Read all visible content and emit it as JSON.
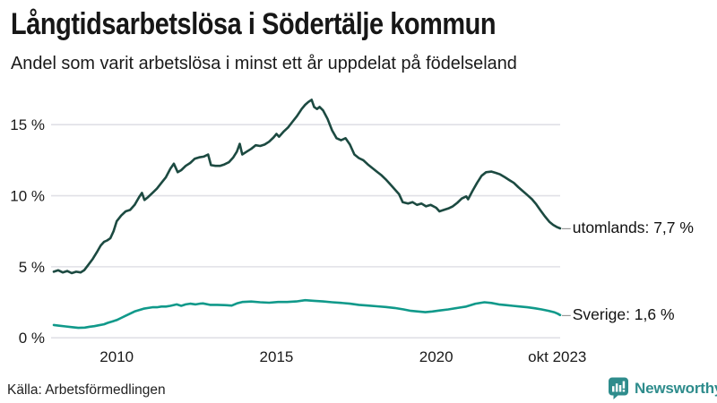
{
  "header": {
    "title": "Långtidsarbetslösa i Södertälje kommun",
    "subtitle": "Andel som varit arbetslösa i minst ett år uppdelat på födelseland"
  },
  "chart_data": {
    "type": "line",
    "title": "Långtidsarbetslösa i Södertälje kommun",
    "subtitle": "Andel som varit arbetslösa i minst ett år uppdelat på födelseland",
    "unit": "%",
    "grid": true,
    "legend_position": "line-end-labels",
    "x_range": [
      2008.03,
      2023.88
    ],
    "ylim": [
      0,
      17
    ],
    "y_ticks": [
      {
        "label": "0 %",
        "value": 0
      },
      {
        "label": "5 %",
        "value": 5
      },
      {
        "label": "10 %",
        "value": 10
      },
      {
        "label": "15 %",
        "value": 15
      }
    ],
    "x_ticks": [
      {
        "label": "2010",
        "value": 2010
      },
      {
        "label": "2015",
        "value": 2015
      },
      {
        "label": "2020",
        "value": 2020
      },
      {
        "label": "okt 2023",
        "value": 2023.79
      }
    ],
    "series": [
      {
        "name": "utomlands",
        "end_label": "utomlands: 7,7 %",
        "last_value": 7.7,
        "color": "#1c4a41",
        "points": [
          [
            2008.03,
            4.65
          ],
          [
            2008.17,
            4.75
          ],
          [
            2008.31,
            4.6
          ],
          [
            2008.45,
            4.7
          ],
          [
            2008.59,
            4.55
          ],
          [
            2008.73,
            4.65
          ],
          [
            2008.87,
            4.6
          ],
          [
            2008.98,
            4.75
          ],
          [
            2009.1,
            5.1
          ],
          [
            2009.25,
            5.55
          ],
          [
            2009.4,
            6.1
          ],
          [
            2009.5,
            6.5
          ],
          [
            2009.6,
            6.75
          ],
          [
            2009.7,
            6.85
          ],
          [
            2009.8,
            7.0
          ],
          [
            2009.9,
            7.5
          ],
          [
            2010.0,
            8.2
          ],
          [
            2010.14,
            8.6
          ],
          [
            2010.28,
            8.9
          ],
          [
            2010.42,
            9.0
          ],
          [
            2010.56,
            9.35
          ],
          [
            2010.7,
            9.9
          ],
          [
            2010.79,
            10.2
          ],
          [
            2010.87,
            9.7
          ],
          [
            2010.98,
            9.9
          ],
          [
            2011.12,
            10.2
          ],
          [
            2011.26,
            10.5
          ],
          [
            2011.4,
            10.9
          ],
          [
            2011.54,
            11.3
          ],
          [
            2011.68,
            11.9
          ],
          [
            2011.79,
            12.25
          ],
          [
            2011.91,
            11.65
          ],
          [
            2012.02,
            11.8
          ],
          [
            2012.16,
            12.1
          ],
          [
            2012.3,
            12.3
          ],
          [
            2012.44,
            12.6
          ],
          [
            2012.58,
            12.7
          ],
          [
            2012.72,
            12.75
          ],
          [
            2012.86,
            12.9
          ],
          [
            2012.95,
            12.15
          ],
          [
            2013.09,
            12.1
          ],
          [
            2013.23,
            12.1
          ],
          [
            2013.37,
            12.2
          ],
          [
            2013.51,
            12.35
          ],
          [
            2013.65,
            12.7
          ],
          [
            2013.76,
            13.1
          ],
          [
            2013.85,
            13.65
          ],
          [
            2013.93,
            12.9
          ],
          [
            2014.07,
            13.1
          ],
          [
            2014.21,
            13.3
          ],
          [
            2014.35,
            13.55
          ],
          [
            2014.49,
            13.5
          ],
          [
            2014.63,
            13.6
          ],
          [
            2014.77,
            13.8
          ],
          [
            2014.91,
            14.1
          ],
          [
            2015.0,
            14.35
          ],
          [
            2015.08,
            14.15
          ],
          [
            2015.22,
            14.5
          ],
          [
            2015.36,
            14.8
          ],
          [
            2015.5,
            15.2
          ],
          [
            2015.64,
            15.6
          ],
          [
            2015.79,
            16.1
          ],
          [
            2015.9,
            16.4
          ],
          [
            2016.0,
            16.6
          ],
          [
            2016.1,
            16.75
          ],
          [
            2016.18,
            16.25
          ],
          [
            2016.27,
            16.1
          ],
          [
            2016.35,
            16.25
          ],
          [
            2016.46,
            16.0
          ],
          [
            2016.6,
            15.4
          ],
          [
            2016.74,
            14.6
          ],
          [
            2016.88,
            14.05
          ],
          [
            2017.02,
            13.9
          ],
          [
            2017.16,
            14.05
          ],
          [
            2017.3,
            13.6
          ],
          [
            2017.44,
            12.9
          ],
          [
            2017.58,
            12.65
          ],
          [
            2017.72,
            12.5
          ],
          [
            2017.86,
            12.2
          ],
          [
            2018.0,
            11.95
          ],
          [
            2018.14,
            11.7
          ],
          [
            2018.28,
            11.45
          ],
          [
            2018.42,
            11.15
          ],
          [
            2018.56,
            10.8
          ],
          [
            2018.7,
            10.45
          ],
          [
            2018.84,
            10.1
          ],
          [
            2018.95,
            9.55
          ],
          [
            2019.12,
            9.45
          ],
          [
            2019.26,
            9.55
          ],
          [
            2019.4,
            9.35
          ],
          [
            2019.54,
            9.45
          ],
          [
            2019.68,
            9.25
          ],
          [
            2019.83,
            9.35
          ],
          [
            2020.0,
            9.15
          ],
          [
            2020.1,
            8.9
          ],
          [
            2020.24,
            9.0
          ],
          [
            2020.38,
            9.1
          ],
          [
            2020.52,
            9.25
          ],
          [
            2020.66,
            9.5
          ],
          [
            2020.8,
            9.8
          ],
          [
            2020.94,
            9.95
          ],
          [
            2021.0,
            9.75
          ],
          [
            2021.14,
            10.35
          ],
          [
            2021.28,
            10.9
          ],
          [
            2021.42,
            11.4
          ],
          [
            2021.56,
            11.65
          ],
          [
            2021.73,
            11.7
          ],
          [
            2021.87,
            11.6
          ],
          [
            2022.0,
            11.5
          ],
          [
            2022.15,
            11.3
          ],
          [
            2022.29,
            11.1
          ],
          [
            2022.43,
            10.9
          ],
          [
            2022.57,
            10.6
          ],
          [
            2022.7,
            10.35
          ],
          [
            2022.85,
            10.05
          ],
          [
            2023.0,
            9.75
          ],
          [
            2023.13,
            9.4
          ],
          [
            2023.27,
            8.95
          ],
          [
            2023.4,
            8.55
          ],
          [
            2023.55,
            8.15
          ],
          [
            2023.66,
            7.95
          ],
          [
            2023.77,
            7.8
          ],
          [
            2023.88,
            7.7
          ]
        ]
      },
      {
        "name": "Sverige",
        "end_label": "Sverige: 1,6 %",
        "last_value": 1.6,
        "color": "#10998a",
        "points": [
          [
            2008.03,
            0.9
          ],
          [
            2008.2,
            0.85
          ],
          [
            2008.4,
            0.8
          ],
          [
            2008.6,
            0.75
          ],
          [
            2008.8,
            0.7
          ],
          [
            2009.0,
            0.72
          ],
          [
            2009.16,
            0.78
          ],
          [
            2009.3,
            0.82
          ],
          [
            2009.44,
            0.88
          ],
          [
            2009.6,
            0.95
          ],
          [
            2009.72,
            1.05
          ],
          [
            2009.86,
            1.15
          ],
          [
            2010.0,
            1.25
          ],
          [
            2010.14,
            1.4
          ],
          [
            2010.28,
            1.55
          ],
          [
            2010.42,
            1.7
          ],
          [
            2010.56,
            1.85
          ],
          [
            2010.7,
            1.95
          ],
          [
            2010.84,
            2.05
          ],
          [
            2010.98,
            2.1
          ],
          [
            2011.12,
            2.15
          ],
          [
            2011.26,
            2.15
          ],
          [
            2011.4,
            2.2
          ],
          [
            2011.54,
            2.2
          ],
          [
            2011.68,
            2.25
          ],
          [
            2011.88,
            2.35
          ],
          [
            2012.02,
            2.25
          ],
          [
            2012.16,
            2.35
          ],
          [
            2012.3,
            2.4
          ],
          [
            2012.47,
            2.35
          ],
          [
            2012.6,
            2.4
          ],
          [
            2012.7,
            2.42
          ],
          [
            2012.92,
            2.32
          ],
          [
            2013.14,
            2.32
          ],
          [
            2013.37,
            2.3
          ],
          [
            2013.6,
            2.27
          ],
          [
            2013.76,
            2.42
          ],
          [
            2013.93,
            2.52
          ],
          [
            2014.21,
            2.55
          ],
          [
            2014.49,
            2.5
          ],
          [
            2014.77,
            2.47
          ],
          [
            2015.05,
            2.52
          ],
          [
            2015.33,
            2.52
          ],
          [
            2015.62,
            2.56
          ],
          [
            2015.9,
            2.65
          ],
          [
            2016.18,
            2.6
          ],
          [
            2016.46,
            2.56
          ],
          [
            2016.74,
            2.5
          ],
          [
            2017.02,
            2.46
          ],
          [
            2017.3,
            2.4
          ],
          [
            2017.58,
            2.32
          ],
          [
            2017.86,
            2.27
          ],
          [
            2018.14,
            2.22
          ],
          [
            2018.42,
            2.17
          ],
          [
            2018.7,
            2.1
          ],
          [
            2018.98,
            2.0
          ],
          [
            2019.21,
            1.9
          ],
          [
            2019.43,
            1.85
          ],
          [
            2019.66,
            1.8
          ],
          [
            2019.88,
            1.85
          ],
          [
            2020.11,
            1.92
          ],
          [
            2020.38,
            2.0
          ],
          [
            2020.66,
            2.1
          ],
          [
            2020.94,
            2.2
          ],
          [
            2021.23,
            2.4
          ],
          [
            2021.51,
            2.5
          ],
          [
            2021.73,
            2.45
          ],
          [
            2021.96,
            2.35
          ],
          [
            2022.18,
            2.3
          ],
          [
            2022.4,
            2.25
          ],
          [
            2022.63,
            2.2
          ],
          [
            2022.85,
            2.15
          ],
          [
            2023.08,
            2.08
          ],
          [
            2023.3,
            2.0
          ],
          [
            2023.52,
            1.9
          ],
          [
            2023.69,
            1.8
          ],
          [
            2023.8,
            1.7
          ],
          [
            2023.88,
            1.6
          ]
        ]
      }
    ]
  },
  "labels": {
    "connector": "–"
  },
  "footer": {
    "source": "Källa: Arbetsförmedlingen",
    "brand": "Newsworthy"
  },
  "colors": {
    "line_foreign": "#1c4a41",
    "line_sweden": "#10998a",
    "brand_teal": "#2e8c8c",
    "grid": "#e0e0e6",
    "text": "#1a1a1a"
  }
}
